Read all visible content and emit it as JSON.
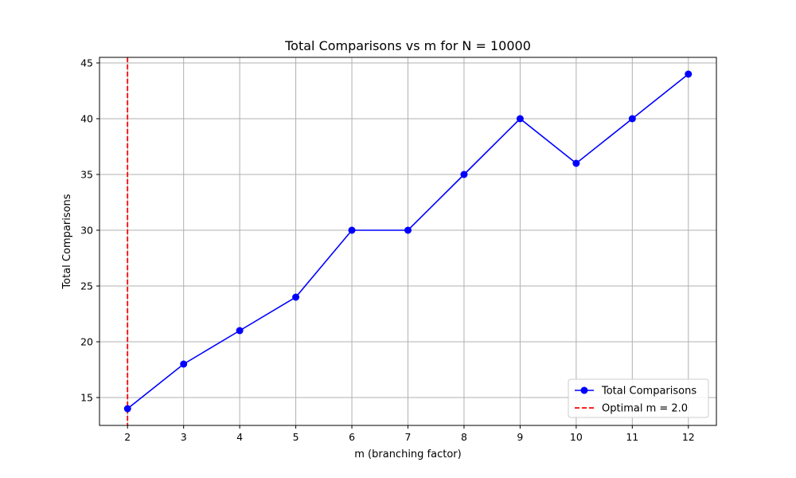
{
  "chart_data": {
    "type": "line",
    "title": "Total Comparisons vs m for N = 10000",
    "xlabel": "m (branching factor)",
    "ylabel": "Total Comparisons",
    "x": [
      2,
      3,
      4,
      5,
      6,
      7,
      8,
      9,
      10,
      11,
      12
    ],
    "xlim": [
      1.5,
      12.5
    ],
    "ylim": [
      12.5,
      45.5
    ],
    "x_ticks": [
      "2",
      "3",
      "4",
      "5",
      "6",
      "7",
      "8",
      "9",
      "10",
      "11",
      "12"
    ],
    "y_ticks": [
      "15",
      "20",
      "25",
      "30",
      "35",
      "40",
      "45"
    ],
    "grid": true,
    "legend_position": "lower right",
    "series": [
      {
        "name": "Total Comparisons",
        "values": [
          14,
          18,
          21,
          24,
          30,
          30,
          35,
          40,
          36,
          40,
          44
        ],
        "color": "#0000ff",
        "marker": "circle",
        "line_style": "solid"
      }
    ],
    "reference_lines": [
      {
        "name": "Optimal m = 2.0",
        "orientation": "vertical",
        "x": 2.0,
        "color": "#ff0000",
        "line_style": "dashed"
      }
    ]
  }
}
